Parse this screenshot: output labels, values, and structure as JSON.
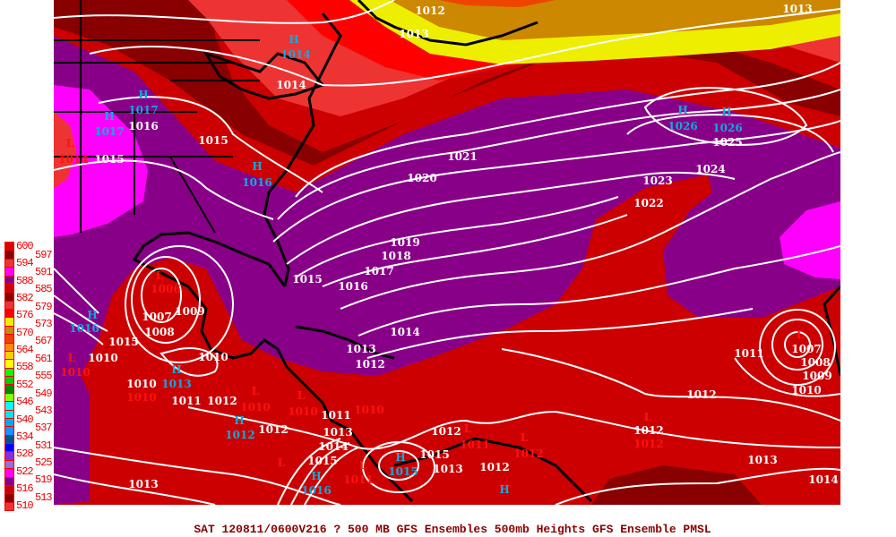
{
  "caption": "SAT 120811/0600V216  ? 500 MB GFS Ensembles 500mb Heights GFS Ensemble PMSL",
  "colors": {
    "isobar_label": "#ffffff",
    "high_marker": "#11aadd",
    "low_marker": "#ff1111",
    "base_red": "#cc0000",
    "purple": "#880088",
    "magenta": "#ff00ff",
    "dark_red": "#880000",
    "light_red": "#ee3333",
    "bright_red": "#ff0000",
    "yellow": "#eeee00",
    "dark_orange": "#cc8800",
    "coastline": "#000000",
    "caption": "#8b0000"
  },
  "legend": {
    "labels": [
      "600",
      "597",
      "594",
      "591",
      "588",
      "585",
      "582",
      "579",
      "576",
      "573",
      "570",
      "567",
      "564",
      "561",
      "558",
      "555",
      "552",
      "549",
      "546",
      "543",
      "540",
      "537",
      "534",
      "531",
      "528",
      "525",
      "522",
      "519",
      "516",
      "513",
      "510"
    ],
    "swatches": [
      "#dd0000",
      "#880000",
      "#ee3333",
      "#ff00ff",
      "#880088",
      "#cc0000",
      "#880000",
      "#ee3333",
      "#ff0000",
      "#eeee00",
      "#cc8800",
      "#ee4400",
      "#ff8800",
      "#ffcc00",
      "#ffff00",
      "#00ff00",
      "#00cc00",
      "#008800",
      "#88ff00",
      "#00ffff",
      "#00e5ee",
      "#00aaee",
      "#1e90ff",
      "#104e8b",
      "#0000ff",
      "#8a2be2",
      "#9370db",
      "#ff00ff",
      "#880088",
      "#cc0000",
      "#880000",
      "#ee3333"
    ]
  },
  "map_labels": [
    {
      "text": "1012",
      "kind": "isobar"
    },
    {
      "text": "1013",
      "kind": "isobar"
    },
    {
      "text": "H",
      "kind": "high"
    },
    {
      "text": "1014",
      "kind": "high"
    },
    {
      "text": "1014",
      "kind": "isobar"
    },
    {
      "text": "H",
      "kind": "high"
    },
    {
      "text": "1017",
      "kind": "high"
    },
    {
      "text": "H",
      "kind": "high"
    },
    {
      "text": "1017",
      "kind": "high"
    },
    {
      "text": "1016",
      "kind": "isobar"
    },
    {
      "text": "1015",
      "kind": "isobar"
    },
    {
      "text": "L",
      "kind": "low"
    },
    {
      "text": "1014",
      "kind": "low"
    },
    {
      "text": "1015",
      "kind": "isobar"
    },
    {
      "text": "H",
      "kind": "high"
    },
    {
      "text": "1016",
      "kind": "high"
    },
    {
      "text": "1021",
      "kind": "isobar"
    },
    {
      "text": "1020",
      "kind": "isobar"
    },
    {
      "text": "H",
      "kind": "high"
    },
    {
      "text": "1026",
      "kind": "high"
    },
    {
      "text": "H",
      "kind": "high"
    },
    {
      "text": "1026",
      "kind": "high"
    },
    {
      "text": "1025",
      "kind": "isobar"
    },
    {
      "text": "1024",
      "kind": "isobar"
    },
    {
      "text": "1023",
      "kind": "isobar"
    },
    {
      "text": "1022",
      "kind": "isobar"
    },
    {
      "text": "1019",
      "kind": "isobar"
    },
    {
      "text": "1018",
      "kind": "isobar"
    },
    {
      "text": "1017",
      "kind": "isobar"
    },
    {
      "text": "1015",
      "kind": "isobar"
    },
    {
      "text": "1016",
      "kind": "isobar"
    },
    {
      "text": "1014",
      "kind": "isobar"
    },
    {
      "text": "1013",
      "kind": "isobar"
    },
    {
      "text": "1012",
      "kind": "isobar"
    },
    {
      "text": "1013",
      "kind": "isobar"
    },
    {
      "text": "L",
      "kind": "low"
    },
    {
      "text": "1006",
      "kind": "low"
    },
    {
      "text": "1007",
      "kind": "isobar"
    },
    {
      "text": "1009",
      "kind": "isobar"
    },
    {
      "text": "1008",
      "kind": "isobar"
    },
    {
      "text": "H",
      "kind": "high"
    },
    {
      "text": "1016",
      "kind": "high"
    },
    {
      "text": "1015",
      "kind": "isobar"
    },
    {
      "text": "L",
      "kind": "low"
    },
    {
      "text": "1010",
      "kind": "isobar"
    },
    {
      "text": "1010",
      "kind": "low"
    },
    {
      "text": "1010",
      "kind": "isobar"
    },
    {
      "text": "H",
      "kind": "high"
    },
    {
      "text": "1013",
      "kind": "high"
    },
    {
      "text": "1010",
      "kind": "isobar"
    },
    {
      "text": "1010",
      "kind": "low"
    },
    {
      "text": "1011",
      "kind": "isobar"
    },
    {
      "text": "1012",
      "kind": "isobar"
    },
    {
      "text": "L",
      "kind": "low"
    },
    {
      "text": "1010",
      "kind": "low"
    },
    {
      "text": "L",
      "kind": "low"
    },
    {
      "text": "1010",
      "kind": "low"
    },
    {
      "text": "H",
      "kind": "high"
    },
    {
      "text": "1012",
      "kind": "isobar"
    },
    {
      "text": "1012",
      "kind": "high"
    },
    {
      "text": "1013",
      "kind": "isobar"
    },
    {
      "text": "1011",
      "kind": "isobar"
    },
    {
      "text": "1010",
      "kind": "low"
    },
    {
      "text": "1013",
      "kind": "isobar"
    },
    {
      "text": "1014",
      "kind": "isobar"
    },
    {
      "text": "1015",
      "kind": "isobar"
    },
    {
      "text": "L",
      "kind": "low"
    },
    {
      "text": "H",
      "kind": "high"
    },
    {
      "text": "1016",
      "kind": "high"
    },
    {
      "text": "L",
      "kind": "low"
    },
    {
      "text": "1011",
      "kind": "low"
    },
    {
      "text": "H",
      "kind": "high"
    },
    {
      "text": "1015",
      "kind": "isobar"
    },
    {
      "text": "1015",
      "kind": "high"
    },
    {
      "text": "1013",
      "kind": "isobar"
    },
    {
      "text": "1012",
      "kind": "isobar"
    },
    {
      "text": "L",
      "kind": "low"
    },
    {
      "text": "1011",
      "kind": "low"
    },
    {
      "text": "L",
      "kind": "low"
    },
    {
      "text": "1012",
      "kind": "low"
    },
    {
      "text": "1012",
      "kind": "isobar"
    },
    {
      "text": "H",
      "kind": "high"
    },
    {
      "text": "1011",
      "kind": "isobar"
    },
    {
      "text": "L",
      "kind": "low"
    },
    {
      "text": "1007",
      "kind": "isobar"
    },
    {
      "text": "1008",
      "kind": "isobar"
    },
    {
      "text": "1009",
      "kind": "isobar"
    },
    {
      "text": "1010",
      "kind": "isobar"
    },
    {
      "text": "1012",
      "kind": "isobar"
    },
    {
      "text": "L",
      "kind": "low"
    },
    {
      "text": "1012",
      "kind": "isobar"
    },
    {
      "text": "1012",
      "kind": "low"
    },
    {
      "text": "1013",
      "kind": "isobar"
    },
    {
      "text": "1014",
      "kind": "isobar"
    }
  ]
}
